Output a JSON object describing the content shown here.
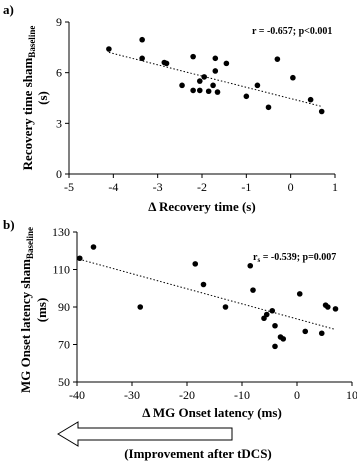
{
  "chart_data": [
    {
      "type": "scatter",
      "panel_label": "a)",
      "annotation": "r = -0.657; p<0.001",
      "xlabel": "Δ Recovery time (s)",
      "ylabel_main": "Recovery time sham",
      "ylabel_sub": "Baseline",
      "ylabel_unit": "(s)",
      "xlim": [
        -5,
        1
      ],
      "ylim": [
        0,
        9
      ],
      "xticks": [
        -5,
        -4,
        -3,
        -2,
        -1,
        0,
        1
      ],
      "yticks": [
        0,
        3,
        6,
        9
      ],
      "grid": false,
      "trendline": {
        "style": "dotted",
        "x": [
          -4.1,
          0.7
        ],
        "y": [
          7.2,
          4.0
        ]
      },
      "points": [
        {
          "x": -4.1,
          "y": 7.4
        },
        {
          "x": -3.35,
          "y": 7.95
        },
        {
          "x": -3.35,
          "y": 6.85
        },
        {
          "x": -2.85,
          "y": 6.6
        },
        {
          "x": -2.8,
          "y": 6.55
        },
        {
          "x": -2.45,
          "y": 5.25
        },
        {
          "x": -2.2,
          "y": 6.95
        },
        {
          "x": -2.2,
          "y": 4.95
        },
        {
          "x": -2.05,
          "y": 5.5
        },
        {
          "x": -2.05,
          "y": 4.95
        },
        {
          "x": -1.95,
          "y": 5.75
        },
        {
          "x": -1.85,
          "y": 4.9
        },
        {
          "x": -1.75,
          "y": 5.25
        },
        {
          "x": -1.7,
          "y": 6.1
        },
        {
          "x": -1.7,
          "y": 6.85
        },
        {
          "x": -1.65,
          "y": 4.85
        },
        {
          "x": -1.45,
          "y": 6.55
        },
        {
          "x": -1.0,
          "y": 4.6
        },
        {
          "x": -0.75,
          "y": 5.25
        },
        {
          "x": -0.5,
          "y": 3.95
        },
        {
          "x": -0.3,
          "y": 6.8
        },
        {
          "x": 0.05,
          "y": 5.7
        },
        {
          "x": 0.45,
          "y": 4.4
        },
        {
          "x": 0.7,
          "y": 3.7
        }
      ]
    },
    {
      "type": "scatter",
      "panel_label": "b)",
      "annotation_main": "r",
      "annotation_sub": "s",
      "annotation_rest": " = -0.539; p=0.007",
      "xlabel": "Δ MG Onset latency (ms)",
      "ylabel_main": "MG Onset latency sham",
      "ylabel_sub": "Baseline",
      "ylabel_unit": "(ms)",
      "xlim": [
        -40,
        10
      ],
      "ylim": [
        50,
        130
      ],
      "xticks": [
        -40,
        -30,
        -20,
        -10,
        0,
        10
      ],
      "yticks": [
        50,
        70,
        90,
        110,
        130
      ],
      "grid": false,
      "trendline": {
        "style": "dotted",
        "x": [
          -39,
          7
        ],
        "y": [
          115,
          78
        ]
      },
      "points": [
        {
          "x": -39.5,
          "y": 116
        },
        {
          "x": -37,
          "y": 122
        },
        {
          "x": -28.5,
          "y": 90
        },
        {
          "x": -18.5,
          "y": 113
        },
        {
          "x": -17,
          "y": 102
        },
        {
          "x": -13,
          "y": 90
        },
        {
          "x": -8.5,
          "y": 112
        },
        {
          "x": -8,
          "y": 99
        },
        {
          "x": -6,
          "y": 84
        },
        {
          "x": -5.5,
          "y": 86
        },
        {
          "x": -4.5,
          "y": 88
        },
        {
          "x": -4,
          "y": 80
        },
        {
          "x": -4,
          "y": 69
        },
        {
          "x": -3,
          "y": 74
        },
        {
          "x": -2.5,
          "y": 73
        },
        {
          "x": 0.5,
          "y": 97
        },
        {
          "x": 1.5,
          "y": 77
        },
        {
          "x": 4.5,
          "y": 76
        },
        {
          "x": 5.2,
          "y": 91
        },
        {
          "x": 5.6,
          "y": 90
        },
        {
          "x": 7,
          "y": 89
        }
      ]
    }
  ],
  "footer": {
    "arrow_direction": "left",
    "caption": "(Improvement after tDCS)"
  }
}
